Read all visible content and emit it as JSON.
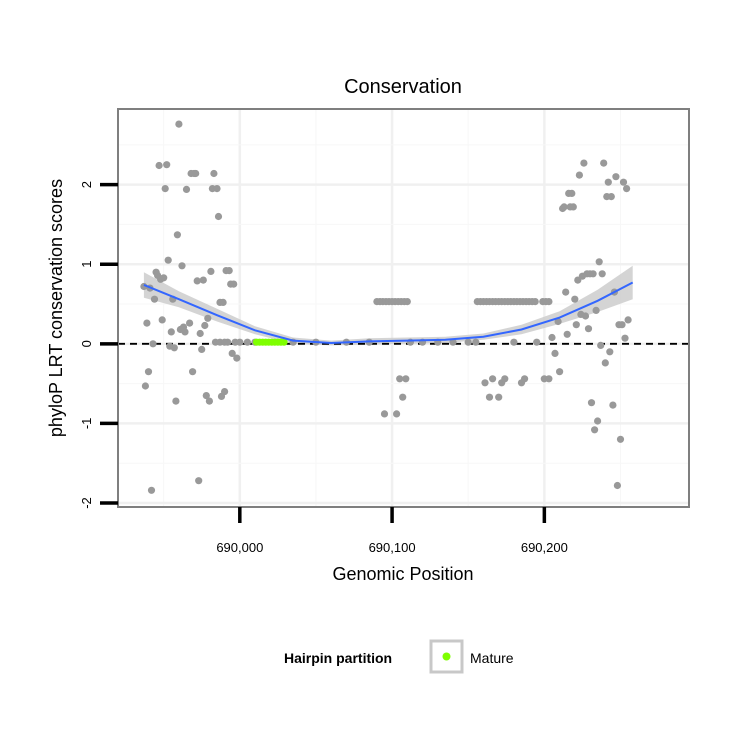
{
  "chart_data": {
    "type": "scatter",
    "title": "Conservation",
    "xlabel": "Genomic Position",
    "ylabel": "phyloP LRT conservation scores",
    "xlim": [
      689920,
      690295
    ],
    "ylim": [
      -2.05,
      2.95
    ],
    "x_ticks": [
      690000,
      690100,
      690200
    ],
    "x_tick_labels": [
      "690,000",
      "690,100",
      "690,200"
    ],
    "y_ticks": [
      -2,
      -1,
      0,
      1,
      2
    ],
    "y_tick_labels": [
      "-2",
      "-1",
      "0",
      "1",
      "2"
    ],
    "grid": true,
    "reference_line": {
      "y": 0,
      "style": "dashed"
    },
    "point_color": "#999999",
    "mature_color": "#7fff00",
    "smooth_color": "#3366ff",
    "band_color": "#cccccc",
    "legend": {
      "title": "Hairpin partition",
      "position": "bottom",
      "entries": [
        {
          "name": "Mature",
          "color": "#7fff00"
        }
      ]
    },
    "series": [
      {
        "name": "",
        "points": [
          [
            689937,
            0.72
          ],
          [
            689938,
            -0.53
          ],
          [
            689939,
            0.26
          ],
          [
            689940,
            -0.35
          ],
          [
            689941,
            0.7
          ],
          [
            689942,
            -1.84
          ],
          [
            689943,
            0.0
          ],
          [
            689944,
            0.56
          ],
          [
            689945,
            0.9
          ],
          [
            689946,
            0.86
          ],
          [
            689947,
            2.24
          ],
          [
            689948,
            0.81
          ],
          [
            689949,
            0.3
          ],
          [
            689950,
            0.83
          ],
          [
            689951,
            1.95
          ],
          [
            689952,
            2.25
          ],
          [
            689953,
            1.05
          ],
          [
            689954,
            -0.03
          ],
          [
            689955,
            0.15
          ],
          [
            689956,
            0.56
          ],
          [
            689957,
            -0.05
          ],
          [
            689958,
            -0.72
          ],
          [
            689959,
            1.37
          ],
          [
            689960,
            2.76
          ],
          [
            689961,
            0.18
          ],
          [
            689962,
            0.98
          ],
          [
            689963,
            0.21
          ],
          [
            689964,
            0.15
          ],
          [
            689965,
            1.94
          ],
          [
            689967,
            0.26
          ],
          [
            689968,
            2.14
          ],
          [
            689969,
            -0.35
          ],
          [
            689970,
            2.14
          ],
          [
            689971,
            2.14
          ],
          [
            689972,
            0.79
          ],
          [
            689973,
            -1.72
          ],
          [
            689974,
            0.13
          ],
          [
            689975,
            -0.07
          ],
          [
            689976,
            0.8
          ],
          [
            689977,
            0.23
          ],
          [
            689978,
            -0.65
          ],
          [
            689979,
            0.32
          ],
          [
            689980,
            -0.72
          ],
          [
            689981,
            0.91
          ],
          [
            689982,
            1.95
          ],
          [
            689983,
            2.14
          ],
          [
            689984,
            0.02
          ],
          [
            689985,
            1.95
          ],
          [
            689986,
            1.6
          ],
          [
            689987,
            0.52
          ],
          [
            689988,
            -0.66
          ],
          [
            689989,
            0.52
          ],
          [
            689990,
            -0.6
          ],
          [
            689991,
            0.92
          ],
          [
            689992,
            0.02
          ],
          [
            689993,
            0.92
          ],
          [
            689994,
            0.75
          ],
          [
            689995,
            -0.12
          ],
          [
            689996,
            0.75
          ],
          [
            689997,
            0.02
          ],
          [
            689998,
            -0.18
          ],
          [
            690000,
            0.02
          ],
          [
            690005,
            0.02
          ],
          [
            690010,
            0.02
          ],
          [
            690035,
            0.02
          ],
          [
            690050,
            0.02
          ],
          [
            690070,
            0.02
          ],
          [
            690085,
            0.02
          ],
          [
            689987,
            0.02
          ],
          [
            689990,
            0.02
          ],
          [
            690090,
            0.53
          ],
          [
            690092,
            0.53
          ],
          [
            690094,
            0.53
          ],
          [
            690096,
            0.53
          ],
          [
            690098,
            0.53
          ],
          [
            690100,
            0.53
          ],
          [
            690102,
            0.53
          ],
          [
            690104,
            0.53
          ],
          [
            690106,
            0.53
          ],
          [
            690108,
            0.53
          ],
          [
            690110,
            0.53
          ],
          [
            690095,
            -0.88
          ],
          [
            690103,
            -0.88
          ],
          [
            690105,
            -0.44
          ],
          [
            690107,
            -0.67
          ],
          [
            690109,
            -0.44
          ],
          [
            690112,
            0.02
          ],
          [
            690120,
            0.02
          ],
          [
            690130,
            0.02
          ],
          [
            690140,
            0.02
          ],
          [
            690150,
            0.02
          ],
          [
            690155,
            0.02
          ],
          [
            690156,
            0.53
          ],
          [
            690158,
            0.53
          ],
          [
            690160,
            0.53
          ],
          [
            690162,
            0.53
          ],
          [
            690164,
            0.53
          ],
          [
            690166,
            0.53
          ],
          [
            690168,
            0.53
          ],
          [
            690170,
            0.53
          ],
          [
            690172,
            0.53
          ],
          [
            690174,
            0.53
          ],
          [
            690176,
            0.53
          ],
          [
            690178,
            0.53
          ],
          [
            690180,
            0.53
          ],
          [
            690182,
            0.53
          ],
          [
            690184,
            0.53
          ],
          [
            690186,
            0.53
          ],
          [
            690188,
            0.53
          ],
          [
            690190,
            0.53
          ],
          [
            690192,
            0.53
          ],
          [
            690194,
            0.53
          ],
          [
            690199,
            0.53
          ],
          [
            690201,
            0.53
          ],
          [
            690203,
            0.53
          ],
          [
            690161,
            -0.49
          ],
          [
            690164,
            -0.67
          ],
          [
            690166,
            -0.44
          ],
          [
            690170,
            -0.67
          ],
          [
            690172,
            -0.49
          ],
          [
            690174,
            -0.44
          ],
          [
            690180,
            0.02
          ],
          [
            690185,
            -0.49
          ],
          [
            690187,
            -0.44
          ],
          [
            690195,
            0.02
          ],
          [
            690200,
            -0.44
          ],
          [
            690203,
            -0.44
          ],
          [
            690205,
            0.08
          ],
          [
            690207,
            -0.12
          ],
          [
            690209,
            0.28
          ],
          [
            690210,
            -0.35
          ],
          [
            690212,
            1.7
          ],
          [
            690213,
            1.72
          ],
          [
            690214,
            0.65
          ],
          [
            690215,
            0.12
          ],
          [
            690216,
            1.89
          ],
          [
            690217,
            1.72
          ],
          [
            690218,
            1.89
          ],
          [
            690219,
            1.72
          ],
          [
            690220,
            0.56
          ],
          [
            690221,
            0.24
          ],
          [
            690222,
            0.8
          ],
          [
            690223,
            2.12
          ],
          [
            690224,
            0.37
          ],
          [
            690225,
            0.85
          ],
          [
            690226,
            2.27
          ],
          [
            690227,
            0.35
          ],
          [
            690228,
            0.88
          ],
          [
            690229,
            0.19
          ],
          [
            690230,
            0.88
          ],
          [
            690231,
            -0.74
          ],
          [
            690232,
            0.88
          ],
          [
            690233,
            -1.08
          ],
          [
            690234,
            0.42
          ],
          [
            690235,
            -0.97
          ],
          [
            690236,
            1.03
          ],
          [
            690237,
            -0.02
          ],
          [
            690238,
            0.88
          ],
          [
            690239,
            2.27
          ],
          [
            690240,
            -0.24
          ],
          [
            690241,
            1.85
          ],
          [
            690242,
            2.03
          ],
          [
            690243,
            -0.1
          ],
          [
            690244,
            1.85
          ],
          [
            690245,
            -0.77
          ],
          [
            690246,
            0.65
          ],
          [
            690247,
            2.1
          ],
          [
            690248,
            -1.78
          ],
          [
            690249,
            0.24
          ],
          [
            690250,
            -1.2
          ],
          [
            690251,
            0.24
          ],
          [
            690252,
            2.03
          ],
          [
            690253,
            0.07
          ],
          [
            690254,
            1.95
          ],
          [
            690255,
            0.3
          ]
        ]
      },
      {
        "name": "Mature",
        "points": [
          [
            690011,
            0.02
          ],
          [
            690013,
            0.02
          ],
          [
            690015,
            0.02
          ],
          [
            690017,
            0.02
          ],
          [
            690019,
            0.02
          ],
          [
            690021,
            0.02
          ],
          [
            690023,
            0.02
          ],
          [
            690025,
            0.02
          ],
          [
            690027,
            0.02
          ],
          [
            690029,
            0.02
          ]
        ]
      }
    ],
    "smooth": {
      "x": [
        689937,
        689960,
        689985,
        690010,
        690035,
        690060,
        690085,
        690110,
        690135,
        690160,
        690185,
        690210,
        690235,
        690258
      ],
      "y": [
        0.74,
        0.56,
        0.36,
        0.17,
        0.04,
        0.01,
        0.03,
        0.04,
        0.05,
        0.09,
        0.18,
        0.33,
        0.54,
        0.77
      ],
      "lower": [
        0.58,
        0.46,
        0.28,
        0.12,
        0.0,
        -0.02,
        -0.01,
        0.0,
        0.01,
        0.05,
        0.12,
        0.25,
        0.4,
        0.56
      ],
      "upper": [
        0.9,
        0.66,
        0.44,
        0.22,
        0.08,
        0.04,
        0.07,
        0.08,
        0.09,
        0.13,
        0.24,
        0.41,
        0.68,
        0.98
      ]
    }
  }
}
